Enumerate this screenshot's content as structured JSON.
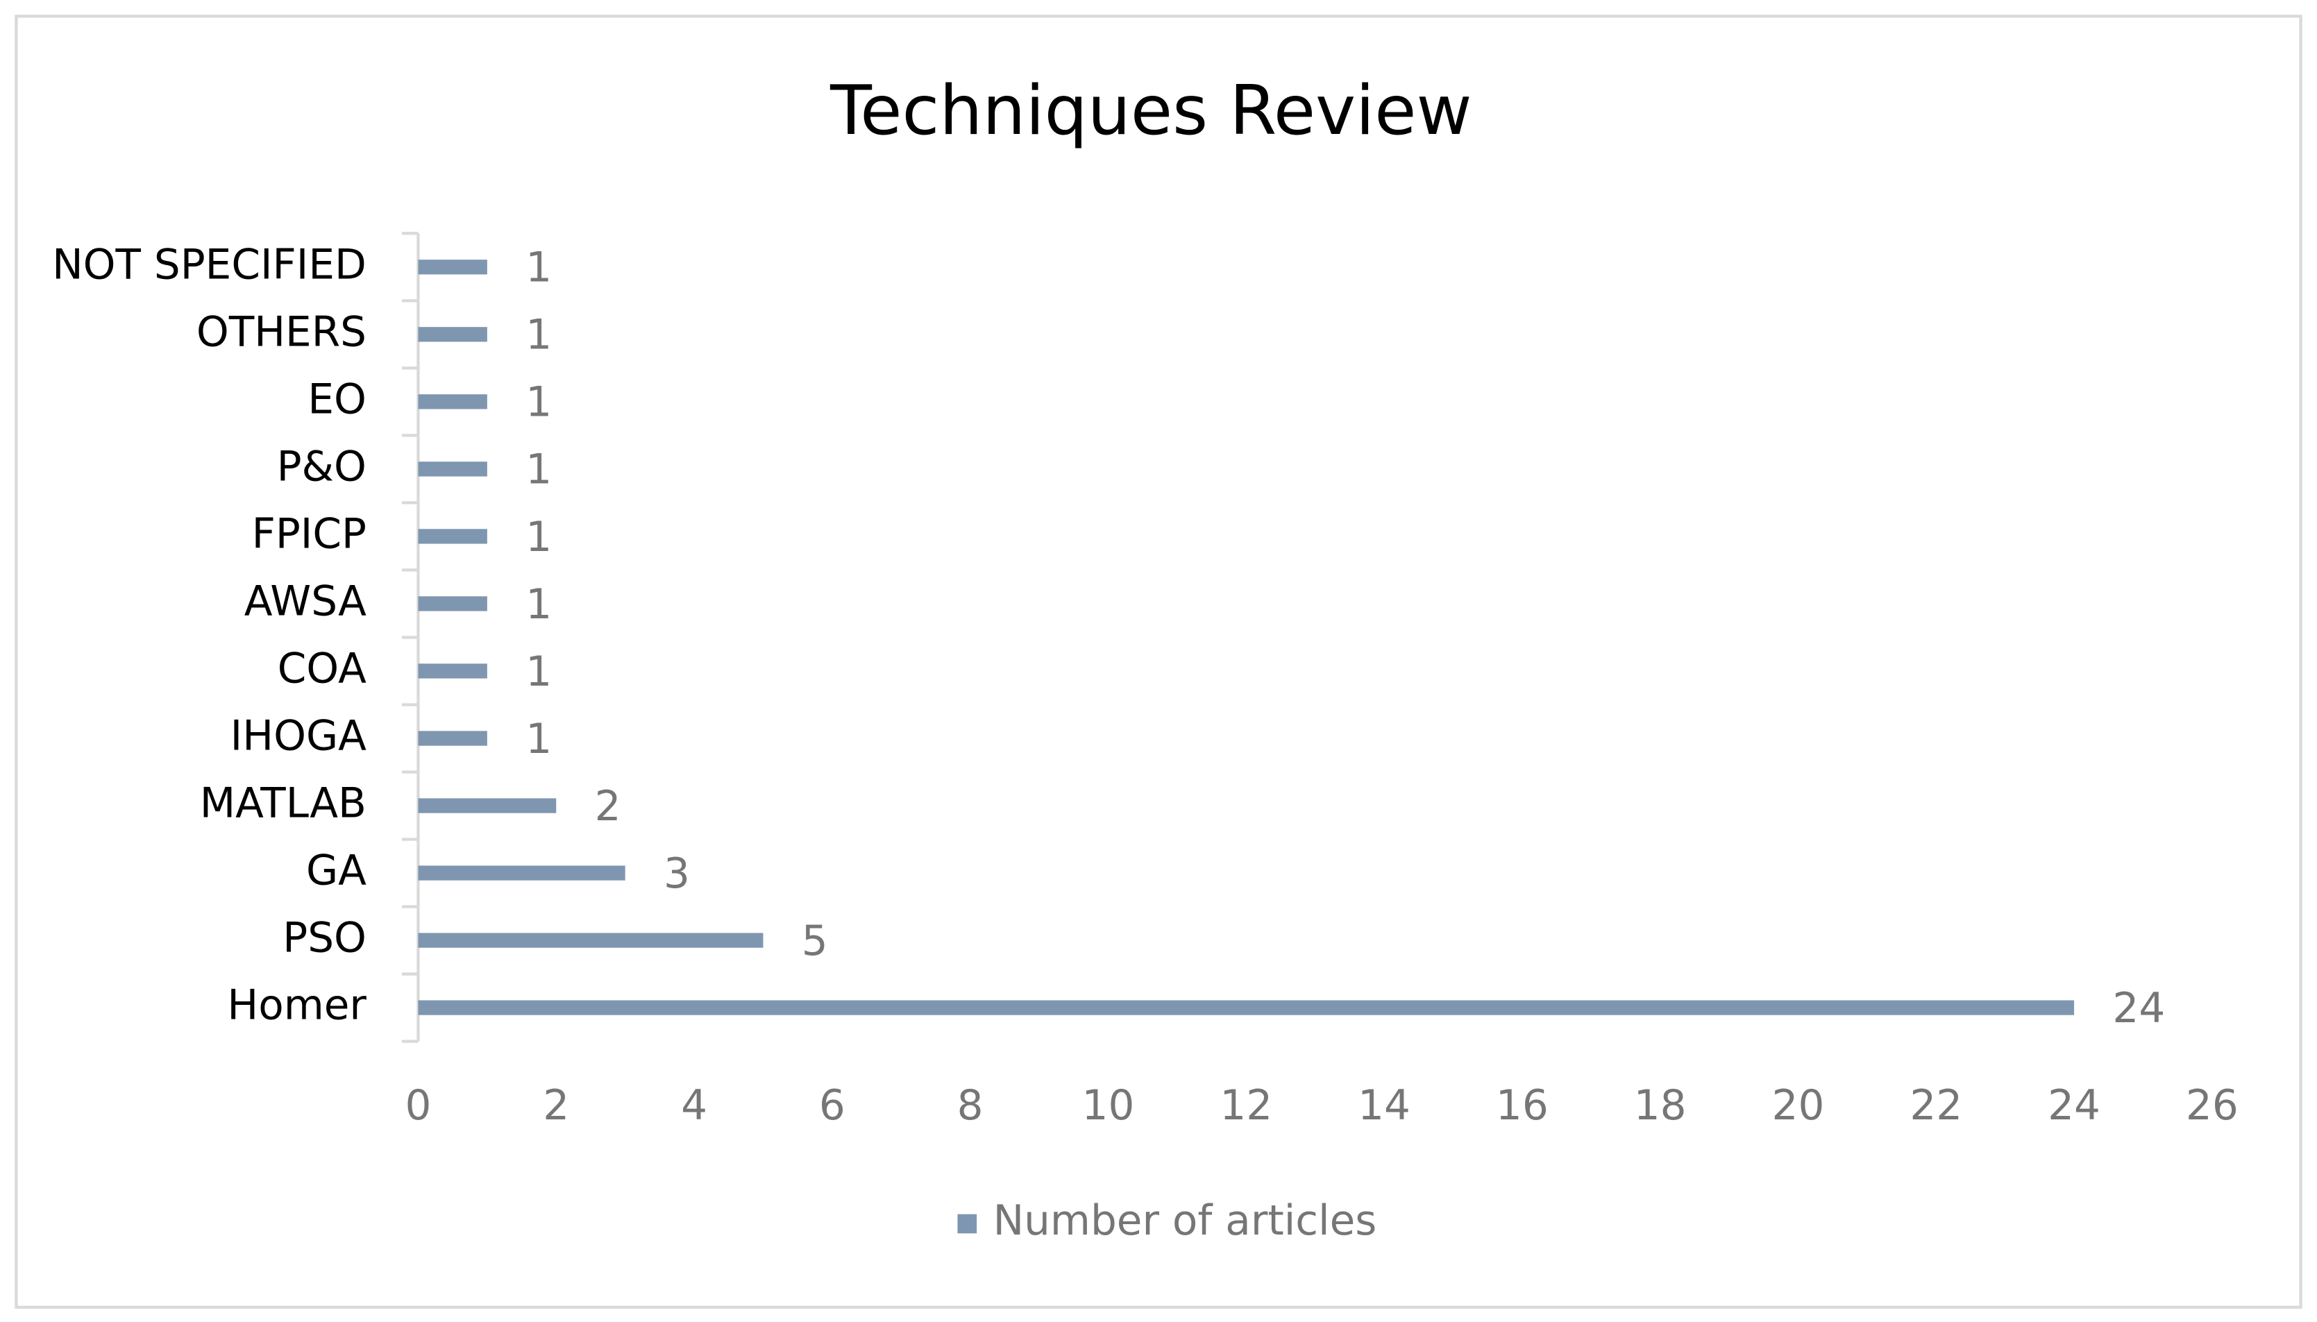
{
  "chart_data": {
    "type": "bar",
    "orientation": "horizontal",
    "title": "Techniques Review",
    "categories": [
      "Homer",
      "PSO",
      "GA",
      "MATLAB",
      "IHOGA",
      "COA",
      "AWSA",
      "FPICP",
      "P&O",
      "EO",
      "OTHERS",
      "NOT SPECIFIED"
    ],
    "series": [
      {
        "name": "Number of articles",
        "color": "#7f96b0",
        "values": [
          24,
          5,
          3,
          2,
          1,
          1,
          1,
          1,
          1,
          1,
          1,
          1
        ]
      }
    ],
    "xlim": [
      0,
      26
    ],
    "xticks": [
      0,
      2,
      4,
      6,
      8,
      10,
      12,
      14,
      16,
      18,
      20,
      22,
      24,
      26
    ],
    "grid": false,
    "legend": "bottom"
  }
}
